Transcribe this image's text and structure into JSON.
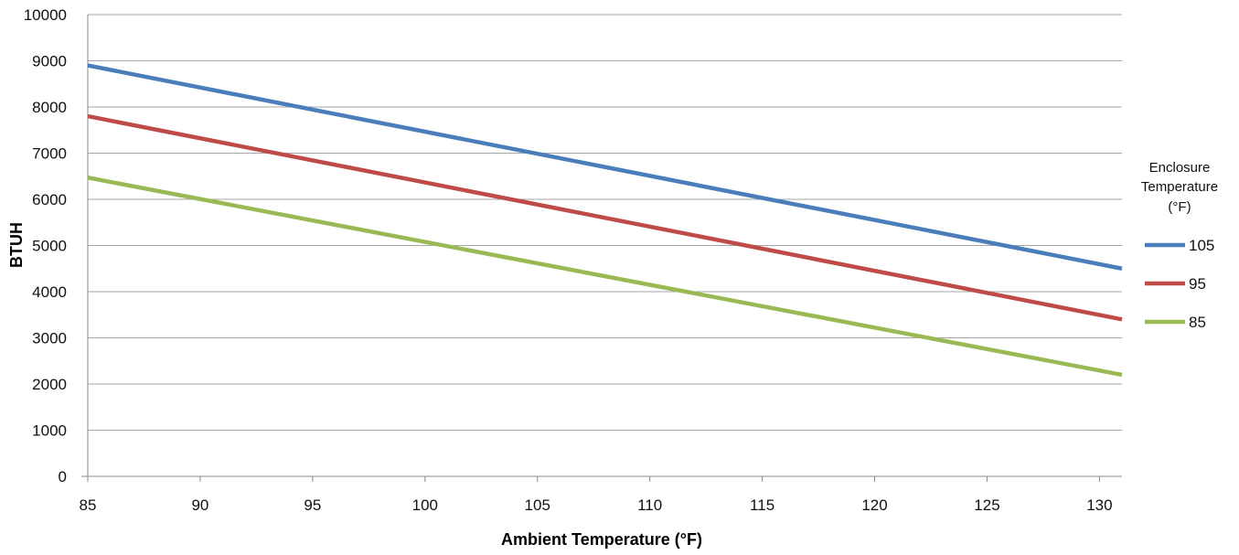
{
  "chart_data": {
    "type": "line",
    "title": "",
    "xlabel": "Ambient Temperature (°F)",
    "ylabel": "BTUH",
    "xlim": [
      85,
      131
    ],
    "ylim": [
      0,
      10000
    ],
    "x_ticks": [
      "85",
      "90",
      "95",
      "100",
      "105",
      "110",
      "115",
      "120",
      "125",
      "130"
    ],
    "y_ticks": [
      "0",
      "1000",
      "2000",
      "3000",
      "4000",
      "5000",
      "6000",
      "7000",
      "8000",
      "9000",
      "10000"
    ],
    "grid": "horizontal",
    "legend": {
      "title_lines": [
        "Enclosure",
        "Temperature",
        "(°F)"
      ],
      "position": "right"
    },
    "series": [
      {
        "name": "105",
        "color": "#4a7ebb",
        "x": [
          85,
          131
        ],
        "y": [
          8900,
          4500
        ]
      },
      {
        "name": "95",
        "color": "#be4b48",
        "x": [
          85,
          131
        ],
        "y": [
          7800,
          3400
        ]
      },
      {
        "name": "85",
        "color": "#98b954",
        "x": [
          85,
          131
        ],
        "y": [
          6470,
          2200
        ]
      }
    ]
  }
}
